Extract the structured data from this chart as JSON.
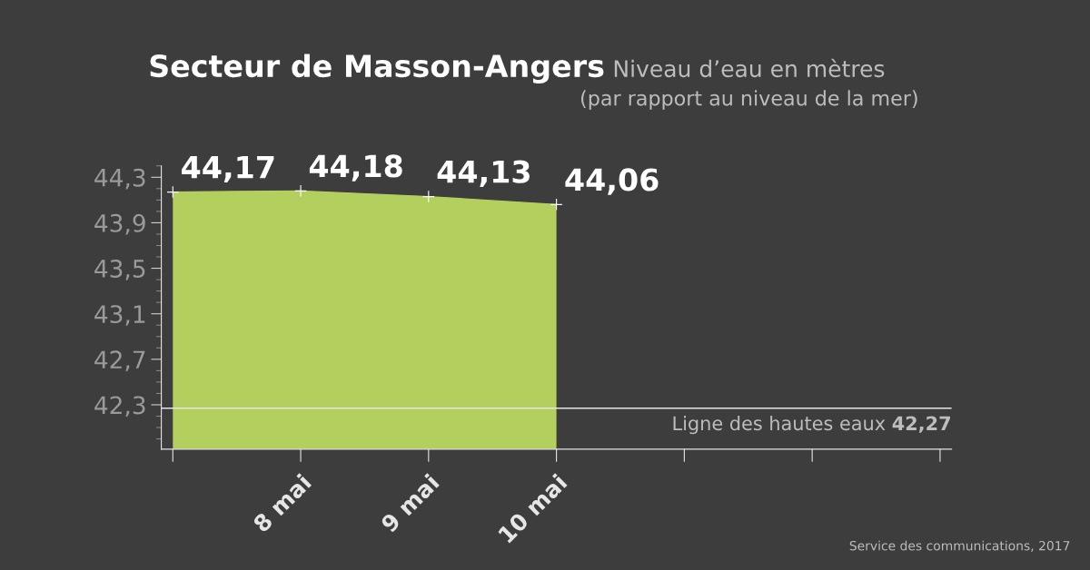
{
  "chart_data": {
    "type": "area",
    "title": "Secteur de Masson-Angers",
    "subtitle": "Niveau d’eau en mètres\n(par rapport au niveau de la mer)",
    "categories": [
      null,
      "8 mai",
      "9 mai",
      "10 mai",
      null,
      null,
      null
    ],
    "series": [
      {
        "color": "#b3cf5e",
        "values": [
          44.17,
          44.18,
          44.13,
          44.06,
          null,
          null,
          null
        ],
        "value_labels": [
          "44,17",
          "44,18",
          "44,13",
          "44,06",
          null,
          null,
          null
        ]
      }
    ],
    "ylim": [
      41.91,
      44.4
    ],
    "yticks": [
      {
        "value": 42.3,
        "label": "42,3"
      },
      {
        "value": 42.7,
        "label": "42,7"
      },
      {
        "value": 43.1,
        "label": "43,1"
      },
      {
        "value": 43.5,
        "label": "43,5"
      },
      {
        "value": 43.9,
        "label": "43,9"
      },
      {
        "value": 44.3,
        "label": "44,3"
      }
    ],
    "ref_lines": [
      {
        "axis": "y",
        "value": 42.27,
        "label": "Ligne des hautes eaux 42,27",
        "color": "#e6e6e6"
      }
    ],
    "marker": "cross",
    "grid": false,
    "legend": false,
    "annotations": [
      "Service des communications, 2017"
    ]
  }
}
